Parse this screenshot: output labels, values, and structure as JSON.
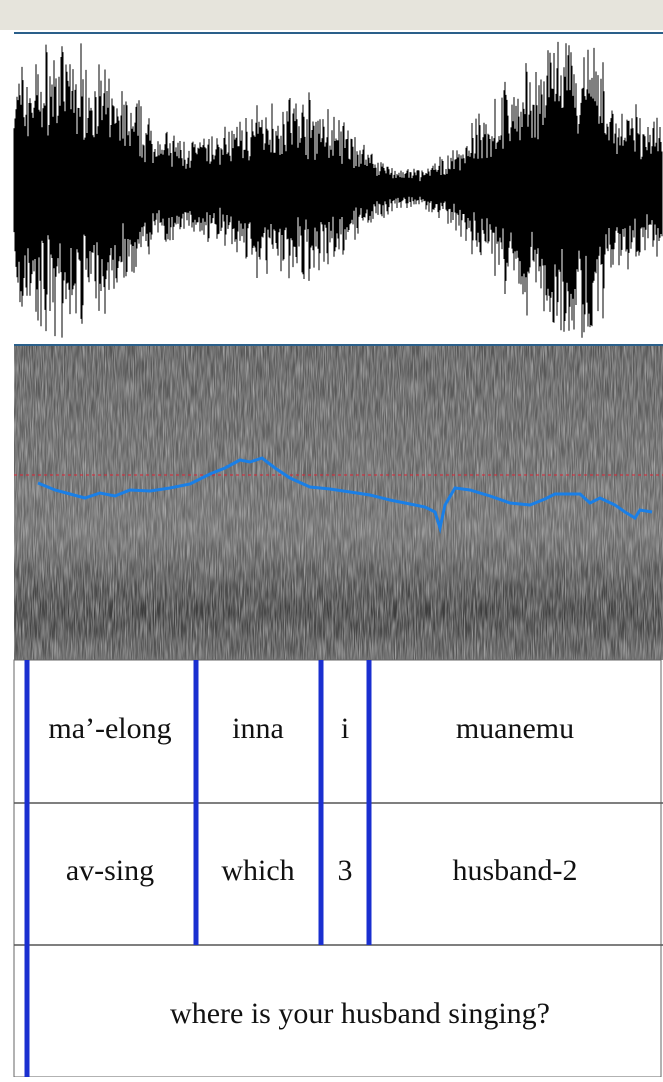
{
  "tiers": [
    {
      "intervals": [
        "ma’-elong",
        "inna",
        "i",
        "muanemu"
      ]
    },
    {
      "intervals": [
        "av-sing",
        "which",
        "3",
        "husband-2"
      ]
    },
    {
      "intervals": [
        "where is your husband singing?"
      ]
    }
  ]
}
